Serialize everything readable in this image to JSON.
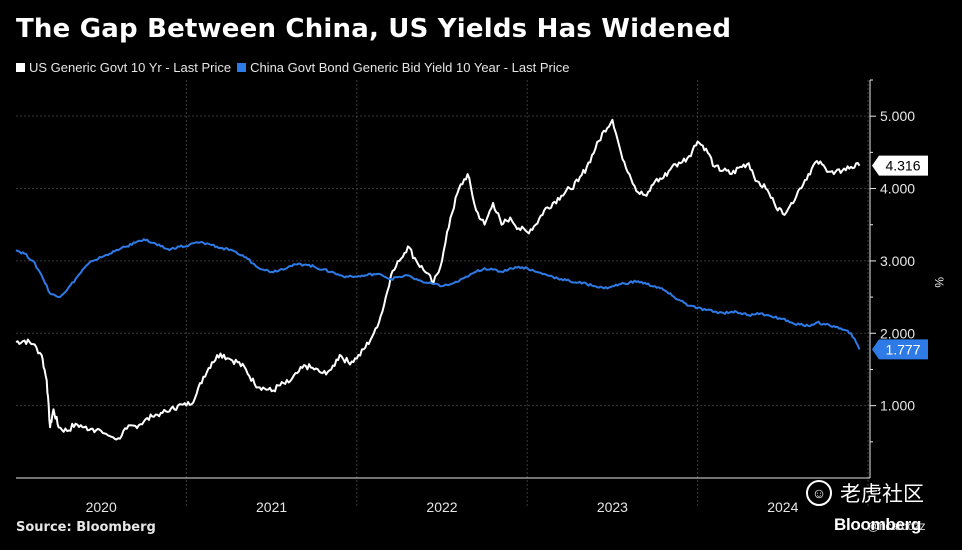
{
  "title": "The Gap Between China, US Yields Has Widened",
  "source": "Source: Bloomberg",
  "brand": "Bloomberg",
  "watermark": {
    "text": "老虎社区",
    "handle": "@ricardozz"
  },
  "colors": {
    "background": "#000000",
    "us_series": "#ffffff",
    "china_series": "#2e7ae6",
    "grid": "#3a3a3a",
    "axis_text": "#e6e6e6"
  },
  "chart_data": {
    "type": "line",
    "title": "The Gap Between China, US Yields Has Widened",
    "xlabel": "",
    "ylabel": "%",
    "ylim": [
      0,
      5.5
    ],
    "yticks": [
      1.0,
      2.0,
      3.0,
      4.0,
      5.0
    ],
    "ytick_labels": [
      "1.000",
      "2.000",
      "3.000",
      "4.000",
      "5.000"
    ],
    "xlim": [
      2020.0,
      2025.0
    ],
    "xticks": [
      2020.5,
      2021.5,
      2022.5,
      2023.5,
      2024.5
    ],
    "xtick_labels": [
      "2020",
      "2021",
      "2022",
      "2023",
      "2024"
    ],
    "grid": true,
    "legend": "top-left",
    "series": [
      {
        "name": "US Generic Govt 10 Yr - Last Price",
        "color": "#ffffff",
        "last_value": 4.316,
        "last_label": "4.316",
        "x": [
          2020.0,
          2020.05,
          2020.1,
          2020.15,
          2020.18,
          2020.2,
          2020.22,
          2020.25,
          2020.3,
          2020.35,
          2020.4,
          2020.45,
          2020.5,
          2020.55,
          2020.6,
          2020.65,
          2020.7,
          2020.75,
          2020.8,
          2020.85,
          2020.9,
          2020.95,
          2021.0,
          2021.05,
          2021.1,
          2021.15,
          2021.2,
          2021.25,
          2021.3,
          2021.35,
          2021.4,
          2021.45,
          2021.5,
          2021.55,
          2021.6,
          2021.65,
          2021.7,
          2021.75,
          2021.8,
          2021.85,
          2021.9,
          2021.95,
          2022.0,
          2022.05,
          2022.1,
          2022.15,
          2022.2,
          2022.25,
          2022.3,
          2022.35,
          2022.4,
          2022.45,
          2022.5,
          2022.55,
          2022.6,
          2022.65,
          2022.7,
          2022.75,
          2022.8,
          2022.85,
          2022.9,
          2022.95,
          2023.0,
          2023.05,
          2023.1,
          2023.15,
          2023.2,
          2023.25,
          2023.3,
          2023.35,
          2023.4,
          2023.45,
          2023.5,
          2023.55,
          2023.6,
          2023.65,
          2023.7,
          2023.75,
          2023.8,
          2023.85,
          2023.9,
          2023.95,
          2024.0,
          2024.05,
          2024.1,
          2024.15,
          2024.2,
          2024.25,
          2024.3,
          2024.35,
          2024.4,
          2024.45,
          2024.5,
          2024.55,
          2024.6,
          2024.65,
          2024.7,
          2024.75,
          2024.8,
          2024.85,
          2024.9,
          2024.95
        ],
        "values": [
          1.88,
          1.9,
          1.85,
          1.7,
          1.35,
          0.7,
          0.95,
          0.7,
          0.65,
          0.75,
          0.7,
          0.68,
          0.65,
          0.58,
          0.55,
          0.68,
          0.72,
          0.78,
          0.85,
          0.9,
          0.92,
          1.0,
          1.0,
          1.1,
          1.4,
          1.6,
          1.72,
          1.65,
          1.6,
          1.5,
          1.3,
          1.25,
          1.2,
          1.28,
          1.32,
          1.45,
          1.55,
          1.5,
          1.45,
          1.5,
          1.7,
          1.6,
          1.65,
          1.8,
          2.0,
          2.3,
          2.8,
          3.0,
          3.2,
          3.0,
          2.85,
          2.7,
          3.0,
          3.6,
          4.0,
          4.2,
          3.7,
          3.5,
          3.8,
          3.5,
          3.6,
          3.45,
          3.4,
          3.5,
          3.7,
          3.8,
          3.9,
          4.0,
          4.1,
          4.3,
          4.55,
          4.8,
          4.95,
          4.5,
          4.2,
          3.95,
          3.9,
          4.1,
          4.15,
          4.3,
          4.35,
          4.45,
          4.65,
          4.55,
          4.3,
          4.25,
          4.2,
          4.3,
          4.35,
          4.1,
          4.0,
          3.8,
          3.65,
          3.8,
          4.0,
          4.2,
          4.38,
          4.28,
          4.2,
          4.25,
          4.3,
          4.316
        ]
      },
      {
        "name": "China Govt Bond Generic Bid Yield 10 Year - Last Price",
        "color": "#2e7ae6",
        "last_value": 1.777,
        "last_label": "1.777",
        "x": [
          2020.0,
          2020.05,
          2020.1,
          2020.15,
          2020.2,
          2020.25,
          2020.3,
          2020.35,
          2020.4,
          2020.45,
          2020.5,
          2020.55,
          2020.6,
          2020.65,
          2020.7,
          2020.75,
          2020.8,
          2020.85,
          2020.9,
          2020.95,
          2021.0,
          2021.05,
          2021.1,
          2021.15,
          2021.2,
          2021.25,
          2021.3,
          2021.35,
          2021.4,
          2021.45,
          2021.5,
          2021.55,
          2021.6,
          2021.65,
          2021.7,
          2021.75,
          2021.8,
          2021.85,
          2021.9,
          2021.95,
          2022.0,
          2022.05,
          2022.1,
          2022.15,
          2022.2,
          2022.25,
          2022.3,
          2022.35,
          2022.4,
          2022.45,
          2022.5,
          2022.55,
          2022.6,
          2022.65,
          2022.7,
          2022.75,
          2022.8,
          2022.85,
          2022.9,
          2022.95,
          2023.0,
          2023.05,
          2023.1,
          2023.15,
          2023.2,
          2023.25,
          2023.3,
          2023.35,
          2023.4,
          2023.45,
          2023.5,
          2023.55,
          2023.6,
          2023.65,
          2023.7,
          2023.75,
          2023.8,
          2023.85,
          2023.9,
          2023.95,
          2024.0,
          2024.05,
          2024.1,
          2024.15,
          2024.2,
          2024.25,
          2024.3,
          2024.35,
          2024.4,
          2024.45,
          2024.5,
          2024.55,
          2024.6,
          2024.65,
          2024.7,
          2024.75,
          2024.8,
          2024.85,
          2024.9,
          2024.95
        ],
        "values": [
          3.15,
          3.1,
          3.0,
          2.8,
          2.55,
          2.5,
          2.6,
          2.75,
          2.9,
          3.0,
          3.05,
          3.1,
          3.15,
          3.2,
          3.25,
          3.3,
          3.25,
          3.2,
          3.15,
          3.2,
          3.2,
          3.25,
          3.25,
          3.22,
          3.18,
          3.15,
          3.1,
          3.05,
          2.95,
          2.88,
          2.85,
          2.88,
          2.92,
          2.95,
          2.95,
          2.92,
          2.88,
          2.85,
          2.8,
          2.78,
          2.78,
          2.8,
          2.82,
          2.8,
          2.75,
          2.78,
          2.8,
          2.75,
          2.7,
          2.68,
          2.65,
          2.68,
          2.72,
          2.78,
          2.85,
          2.9,
          2.88,
          2.85,
          2.9,
          2.92,
          2.9,
          2.85,
          2.82,
          2.78,
          2.75,
          2.72,
          2.7,
          2.68,
          2.65,
          2.62,
          2.65,
          2.68,
          2.7,
          2.72,
          2.68,
          2.65,
          2.6,
          2.52,
          2.45,
          2.38,
          2.35,
          2.32,
          2.3,
          2.28,
          2.3,
          2.28,
          2.25,
          2.28,
          2.25,
          2.22,
          2.2,
          2.15,
          2.12,
          2.1,
          2.15,
          2.12,
          2.1,
          2.05,
          2.0,
          1.777
        ]
      }
    ]
  }
}
